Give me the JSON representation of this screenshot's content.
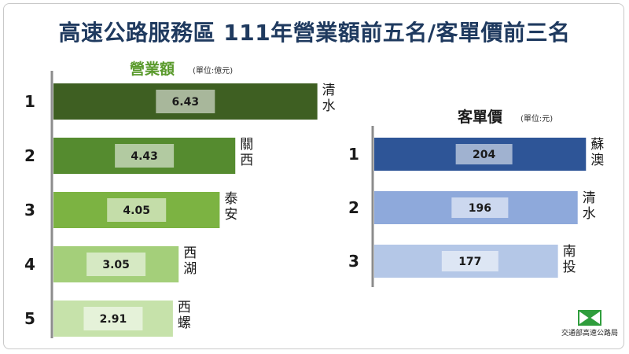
{
  "title": "高速公路服務區  111年營業額前五名/客單價前三名",
  "logo_text": "交通部高速公路局",
  "colors": {
    "title": "#1f3a5f",
    "revenue_heading": "#5a9a2c",
    "revenue_bars": [
      "#3e5f22",
      "#558b2f",
      "#7cb342",
      "#a4cf7a",
      "#c6e2aa"
    ],
    "price_bars": [
      "#2e5597",
      "#8ea9db",
      "#b4c7e7"
    ],
    "axis": "#8c8c8c",
    "logo": "#2f9d3c"
  },
  "chart_data": [
    {
      "type": "bar",
      "orientation": "horizontal",
      "title": "營業額",
      "unit_note": "(單位:億元)",
      "ranks": [
        "1",
        "2",
        "3",
        "4",
        "5"
      ],
      "categories": [
        "清水",
        "關西",
        "泰安",
        "西湖",
        "西螺"
      ],
      "values": [
        6.43,
        4.43,
        4.05,
        3.05,
        2.91
      ],
      "value_labels": [
        "6.43",
        "4.43",
        "4.05",
        "3.05",
        "2.91"
      ]
    },
    {
      "type": "bar",
      "orientation": "horizontal",
      "title": "客單價",
      "unit_note": "(單位:元)",
      "ranks": [
        "1",
        "2",
        "3"
      ],
      "categories": [
        "蘇澳",
        "清水",
        "南投"
      ],
      "values": [
        204,
        196,
        177
      ],
      "value_labels": [
        "204",
        "196",
        "177"
      ]
    }
  ]
}
